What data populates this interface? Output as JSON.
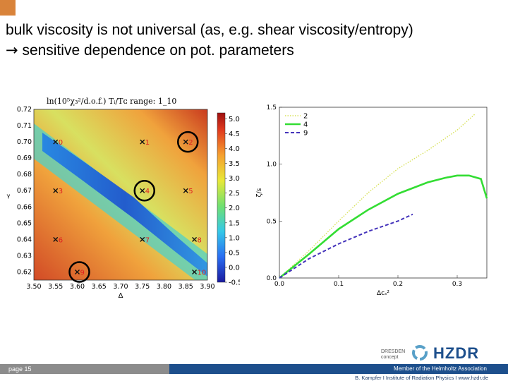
{
  "title": {
    "line1": "bulk viscosity is not universal  (as, e.g. shear viscosity/entropy)",
    "arrow": "→",
    "line2": " sensitive dependence on pot. parameters"
  },
  "footer": {
    "page": "page 15",
    "member": "Member of the Helmholtz Association",
    "credit": "B. Kampfer  I  Institute of Radiation Physics  I  www.hzdr.de",
    "logo_text": "HZDR",
    "dresden_line1": "DRESDEN",
    "dresden_line2": "concept"
  },
  "colors": {
    "corner": "#d9833a",
    "footer_blue": "#1d4f8c",
    "footer_gray": "#8c8c8c",
    "series_2": "#d8e25a",
    "series_4": "#33dd33",
    "series_9": "#4433bb"
  },
  "chart_data": [
    {
      "type": "heatmap",
      "title": "ln(10⁵χ₃²/d.o.f.) Tᵢ/Tᴄ  range: 1_10",
      "xlabel": "Δ",
      "ylabel": "γ",
      "xlim": [
        3.5,
        3.9
      ],
      "ylim": [
        0.615,
        0.72
      ],
      "x_ticks": [
        "3.50",
        "3.55",
        "3.60",
        "3.65",
        "3.70",
        "3.75",
        "3.80",
        "3.85",
        "3.90"
      ],
      "y_ticks": [
        "0.72",
        "0.71",
        "0.70",
        "0.69",
        "0.68",
        "0.67",
        "0.66",
        "0.65",
        "0.64",
        "0.63",
        "0.62"
      ],
      "colorbar_ticks": [
        "5.0",
        "4.5",
        "4.0",
        "3.5",
        "3.0",
        "2.5",
        "2.0",
        "1.5",
        "1.0",
        "0.5",
        "0.0",
        "-0.5"
      ],
      "colorbar_range": [
        -0.5,
        5.2
      ],
      "markers": [
        {
          "label": "0",
          "x": 3.55,
          "y": 0.7
        },
        {
          "label": "1",
          "x": 3.75,
          "y": 0.7
        },
        {
          "label": "2",
          "x": 3.85,
          "y": 0.7
        },
        {
          "label": "3",
          "x": 3.55,
          "y": 0.67
        },
        {
          "label": "4",
          "x": 3.75,
          "y": 0.67
        },
        {
          "label": "5",
          "x": 3.85,
          "y": 0.67
        },
        {
          "label": "6",
          "x": 3.55,
          "y": 0.64
        },
        {
          "label": "7",
          "x": 3.75,
          "y": 0.64
        },
        {
          "label": "8",
          "x": 3.87,
          "y": 0.64
        },
        {
          "label": "9",
          "x": 3.6,
          "y": 0.62
        },
        {
          "label": "10",
          "x": 3.87,
          "y": 0.62
        }
      ],
      "circled": [
        "2",
        "4",
        "9"
      ]
    },
    {
      "type": "line",
      "xlabel": "Δcₛ²",
      "ylabel": "ζ/s",
      "xlim": [
        0.0,
        0.35
      ],
      "ylim": [
        0.0,
        1.5
      ],
      "x_ticks": [
        "0.0",
        "0.1",
        "0.2",
        "0.3"
      ],
      "y_ticks": [
        "0.0",
        "0.5",
        "1.0",
        "1.5"
      ],
      "legend": "top-left",
      "series": [
        {
          "name": "2",
          "style": "dotted",
          "x": [
            0.0,
            0.05,
            0.1,
            0.15,
            0.2,
            0.25,
            0.3,
            0.33
          ],
          "y": [
            0.0,
            0.24,
            0.5,
            0.75,
            0.96,
            1.12,
            1.3,
            1.44
          ]
        },
        {
          "name": "4",
          "style": "solid",
          "x": [
            0.0,
            0.05,
            0.1,
            0.15,
            0.2,
            0.25,
            0.28,
            0.3,
            0.32,
            0.34,
            0.35
          ],
          "y": [
            0.0,
            0.21,
            0.43,
            0.6,
            0.74,
            0.84,
            0.88,
            0.9,
            0.9,
            0.87,
            0.7
          ]
        },
        {
          "name": "9",
          "style": "dashed",
          "x": [
            0.0,
            0.05,
            0.1,
            0.15,
            0.2,
            0.225
          ],
          "y": [
            0.0,
            0.17,
            0.3,
            0.41,
            0.5,
            0.56
          ]
        }
      ]
    }
  ]
}
